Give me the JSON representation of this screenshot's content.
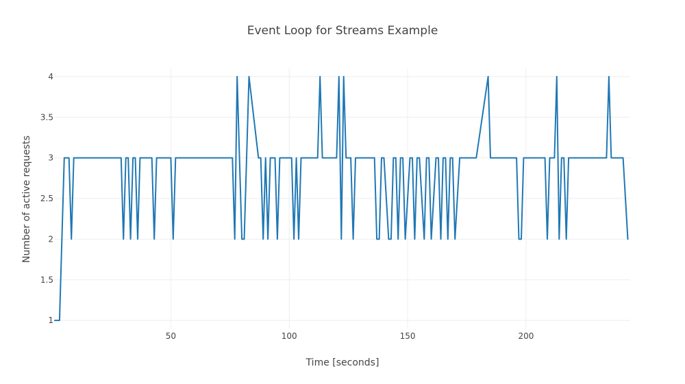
{
  "chart_data": {
    "type": "line",
    "title": "Event Loop for Streams Example",
    "xlabel": "Time [seconds]",
    "ylabel": "Number of active requests",
    "xlim": [
      1,
      244
    ],
    "ylim": [
      0.9,
      4.1
    ],
    "xticks": [
      50,
      100,
      150,
      200
    ],
    "yticks": [
      1,
      1.5,
      2,
      2.5,
      3,
      3.5,
      4
    ],
    "ytick_labels": [
      "1",
      "1.5",
      "2",
      "2.5",
      "3",
      "3.5",
      "4"
    ],
    "grid": true,
    "series": [
      {
        "name": "active requests",
        "color": "#1f77b4",
        "x": [
          1,
          3,
          5,
          7,
          8,
          9,
          10,
          29,
          30,
          31,
          32,
          33,
          34,
          35,
          36,
          37,
          42,
          43,
          44,
          50,
          51,
          52,
          76,
          77,
          78,
          79,
          80,
          81,
          82,
          83,
          87,
          88,
          89,
          90,
          91,
          92,
          94,
          95,
          96,
          97,
          101,
          102,
          103,
          104,
          105,
          106,
          112,
          113,
          114,
          120,
          121,
          122,
          123,
          124,
          126,
          127,
          128,
          136,
          137,
          138,
          139,
          140,
          142,
          143,
          144,
          145,
          146,
          147,
          148,
          149,
          151,
          152,
          153,
          154,
          155,
          157,
          158,
          159,
          160,
          162,
          163,
          164,
          165,
          166,
          167,
          168,
          169,
          170,
          172,
          173,
          174,
          175,
          177,
          178,
          179,
          184,
          185,
          186,
          196,
          197,
          198,
          199,
          201,
          202,
          208,
          209,
          210,
          212,
          213,
          214,
          215,
          216,
          217,
          218,
          219,
          220,
          234,
          235,
          236,
          241,
          243
        ],
        "values": [
          1,
          1,
          3,
          3,
          2,
          3,
          3,
          3,
          2,
          3,
          3,
          2,
          3,
          3,
          2,
          3,
          3,
          2,
          3,
          3,
          2,
          3,
          3,
          2,
          4,
          3,
          2,
          2,
          3,
          4,
          3,
          3,
          2,
          3,
          2,
          3,
          3,
          2,
          3,
          3,
          3,
          2,
          3,
          2,
          3,
          3,
          3,
          4,
          3,
          3,
          4,
          2,
          4,
          3,
          3,
          2,
          3,
          3,
          2,
          2,
          3,
          3,
          2,
          2,
          3,
          3,
          2,
          3,
          3,
          2,
          3,
          3,
          2,
          3,
          3,
          2,
          3,
          3,
          2,
          3,
          3,
          2,
          3,
          3,
          2,
          3,
          3,
          2,
          3,
          3,
          3,
          3,
          3,
          3,
          3,
          4,
          3,
          3,
          3,
          2,
          2,
          3,
          3,
          3,
          3,
          2,
          3,
          3,
          4,
          2,
          3,
          3,
          2,
          3,
          3,
          3,
          3,
          4,
          3,
          3,
          2
        ]
      }
    ]
  }
}
